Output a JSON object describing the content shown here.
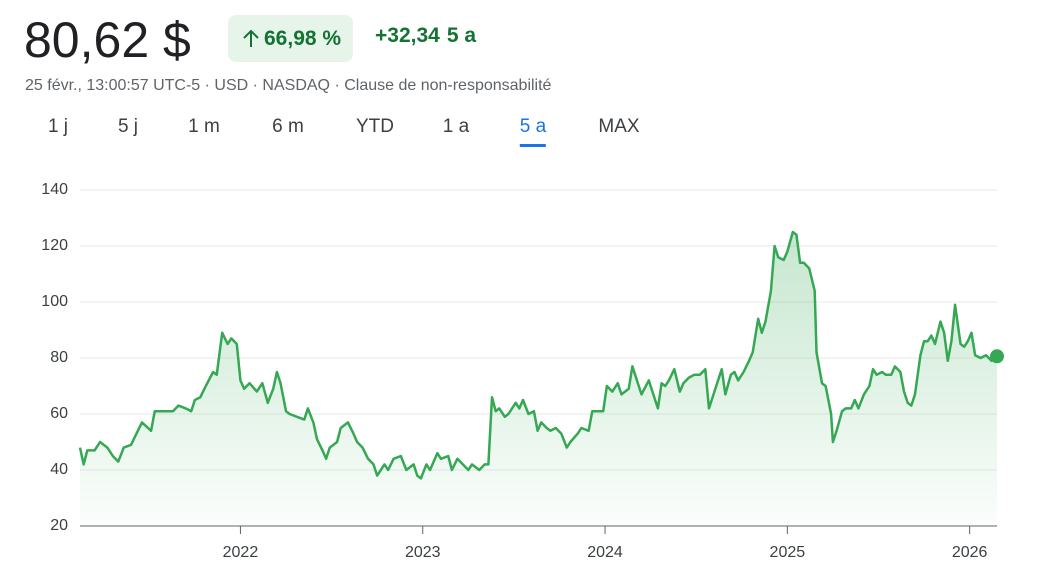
{
  "header": {
    "price": "80,62 $",
    "change_percent": "66,98 %",
    "change": "+32,34",
    "period": "5 a",
    "subtitle": "25 févr., 13:00:57 UTC-5 · USD · NASDAQ · Clause de non-responsabilité"
  },
  "range_tabs": [
    "1 j",
    "5 j",
    "1 m",
    "6 m",
    "YTD",
    "1 a",
    "5 a",
    "MAX"
  ],
  "chart_data": {
    "type": "line",
    "color": "#34a853",
    "grid": true,
    "xlim": [
      2021.12,
      2026.15
    ],
    "xticks": [
      2022,
      2023,
      2024,
      2025,
      2026
    ],
    "ylim": [
      20,
      140
    ],
    "yticks": [
      20,
      40,
      60,
      80,
      100,
      120,
      140
    ],
    "x": [
      2021.12,
      2021.14,
      2021.16,
      2021.2,
      2021.23,
      2021.27,
      2021.3,
      2021.33,
      2021.36,
      2021.4,
      2021.43,
      2021.46,
      2021.51,
      2021.53,
      2021.59,
      2021.63,
      2021.66,
      2021.7,
      2021.73,
      2021.75,
      2021.78,
      2021.81,
      2021.85,
      2021.87,
      2021.9,
      2021.93,
      2021.95,
      2021.98,
      2022.0,
      2022.02,
      2022.05,
      2022.09,
      2022.12,
      2022.15,
      2022.18,
      2022.2,
      2022.22,
      2022.25,
      2022.27,
      2022.31,
      2022.35,
      2022.37,
      2022.4,
      2022.42,
      2022.45,
      2022.47,
      2022.49,
      2022.53,
      2022.55,
      2022.59,
      2022.62,
      2022.64,
      2022.67,
      2022.7,
      2022.73,
      2022.75,
      2022.79,
      2022.81,
      2022.84,
      2022.88,
      2022.91,
      2022.95,
      2022.97,
      2022.99,
      2023.02,
      2023.04,
      2023.08,
      2023.1,
      2023.14,
      2023.16,
      2023.19,
      2023.22,
      2023.25,
      2023.27,
      2023.31,
      2023.34,
      2023.36,
      2023.38,
      2023.4,
      2023.42,
      2023.45,
      2023.47,
      2023.51,
      2023.53,
      2023.55,
      2023.58,
      2023.61,
      2023.63,
      2023.65,
      2023.68,
      2023.7,
      2023.73,
      2023.76,
      2023.79,
      2023.81,
      2023.85,
      2023.87,
      2023.91,
      2023.93,
      2023.96,
      2023.99,
      2024.01,
      2024.04,
      2024.07,
      2024.09,
      2024.13,
      2024.15,
      2024.18,
      2024.2,
      2024.24,
      2024.26,
      2024.29,
      2024.31,
      2024.33,
      2024.35,
      2024.38,
      2024.41,
      2024.43,
      2024.46,
      2024.49,
      2024.52,
      2024.55,
      2024.57,
      2024.59,
      2024.62,
      2024.64,
      2024.66,
      2024.69,
      2024.71,
      2024.73,
      2024.76,
      2024.79,
      2024.81,
      2024.84,
      2024.86,
      2024.88,
      2024.91,
      2024.93,
      2024.95,
      2024.98,
      2025.0,
      2025.03,
      2025.05,
      2025.07,
      2025.09,
      2025.12,
      2025.15,
      2025.16,
      2025.19,
      2025.21,
      2025.24,
      2025.25,
      2025.27,
      2025.3,
      2025.32,
      2025.35,
      2025.37,
      2025.39,
      2025.42,
      2025.45,
      2025.47,
      2025.49,
      2025.52,
      2025.54,
      2025.57,
      2025.59,
      2025.62,
      2025.64,
      2025.66,
      2025.68,
      2025.7,
      2025.73,
      2025.75,
      2025.77,
      2025.79,
      2025.81,
      2025.84,
      2025.86,
      2025.88,
      2025.9,
      2025.92,
      2025.95,
      2025.97,
      2025.99,
      2026.01,
      2026.03,
      2026.06,
      2026.09,
      2026.12,
      2026.14,
      2026.15
    ],
    "values": [
      48,
      42,
      47,
      47,
      50,
      48,
      45,
      43,
      48,
      49,
      53,
      57,
      54,
      61,
      61,
      61,
      63,
      62,
      61,
      65,
      66,
      70,
      75,
      74,
      89,
      85,
      87,
      85,
      72,
      69,
      71,
      68,
      71,
      64,
      69,
      75,
      71,
      61,
      60,
      59,
      58,
      62,
      57,
      51,
      47,
      44,
      48,
      50,
      55,
      57,
      53,
      50,
      48,
      44,
      42,
      38,
      42,
      40,
      44,
      45,
      40,
      42,
      38,
      37,
      42,
      40,
      46,
      44,
      45,
      40,
      44,
      42,
      40,
      42,
      40,
      42,
      42,
      66,
      61,
      62,
      59,
      60,
      64,
      62,
      65,
      60,
      61,
      54,
      57,
      55,
      54,
      55,
      53,
      48,
      50,
      53,
      55,
      54,
      61,
      61,
      61,
      70,
      68,
      71,
      67,
      69,
      77,
      71,
      67,
      72,
      68,
      62,
      71,
      70,
      72,
      76,
      68,
      71,
      73,
      74,
      74,
      76,
      62,
      66,
      72,
      76,
      67,
      74,
      75,
      72,
      75,
      79,
      82,
      94,
      89,
      93,
      104,
      120,
      116,
      115,
      118,
      125,
      124,
      114,
      114,
      112,
      104,
      82,
      71,
      70,
      60,
      50,
      54,
      61,
      62,
      62,
      65,
      62,
      67,
      70,
      76,
      74,
      75,
      74,
      74,
      77,
      75,
      68,
      64,
      63,
      67,
      81,
      86,
      86,
      88,
      85,
      93,
      89,
      79,
      86,
      99,
      85,
      84,
      86,
      89,
      81,
      80,
      81,
      79,
      80,
      80.62
    ]
  }
}
